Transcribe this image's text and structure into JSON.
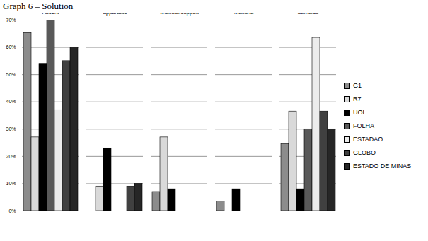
{
  "chart_data": {
    "type": "bar",
    "title": "Graph 6 – Solution",
    "categories": [
      "Absent",
      "Improving supervision apparatus",
      "Providing victims with financial support",
      "Investing in other sources of income for Mariana",
      "Demanding reparations from Samarco"
    ],
    "series": [
      {
        "name": "G1",
        "color": "#8c8c8c",
        "values": [
          65.5,
          0,
          7,
          3.5,
          24.5
        ]
      },
      {
        "name": "R7",
        "color": "#d9d9d9",
        "values": [
          27,
          9,
          27,
          0,
          36.5
        ]
      },
      {
        "name": "UOL",
        "color": "#000000",
        "values": [
          54,
          23,
          8,
          8,
          8
        ]
      },
      {
        "name": "FOLHA",
        "color": "#595959",
        "values": [
          70,
          0,
          0,
          0,
          30
        ]
      },
      {
        "name": "ESTADÃO",
        "color": "#ececec",
        "values": [
          37,
          0,
          0,
          0,
          63.5
        ]
      },
      {
        "name": "GLOBO",
        "color": "#404040",
        "values": [
          55,
          9,
          0,
          0,
          36.5
        ]
      },
      {
        "name": "ESTADO DE MINAS",
        "color": "#262626",
        "values": [
          60,
          10,
          0,
          0,
          30
        ]
      }
    ],
    "ylim": [
      0,
      70
    ],
    "yticks": [
      {
        "value": 0,
        "label": "0%"
      },
      {
        "value": 10,
        "label": "10%"
      },
      {
        "value": 20,
        "label": "20%"
      },
      {
        "value": 30,
        "label": "30%"
      },
      {
        "value": 40,
        "label": "40%"
      },
      {
        "value": 50,
        "label": "50%"
      },
      {
        "value": 60,
        "label": "60%"
      },
      {
        "value": 70,
        "label": "70%"
      }
    ],
    "grid": true,
    "legend": "right"
  }
}
